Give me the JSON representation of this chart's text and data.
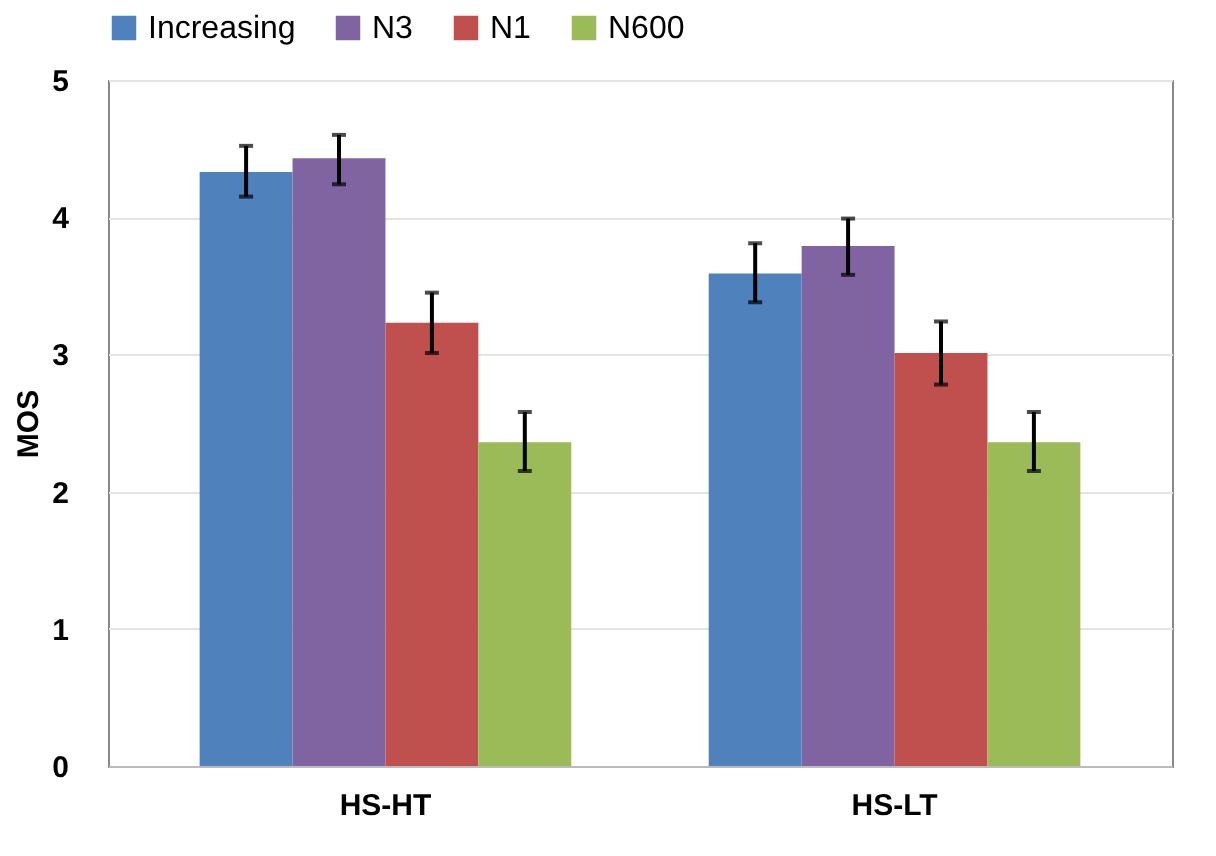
{
  "chart_data": {
    "type": "bar",
    "ylabel": "MOS",
    "categories": [
      "HS-HT",
      "HS-LT"
    ],
    "series": [
      {
        "name": "Increasing",
        "color": "#4f81bd",
        "values": [
          4.33,
          3.59
        ],
        "errors": [
          [
            4.15,
            4.52
          ],
          [
            3.38,
            3.81
          ]
        ]
      },
      {
        "name": "N3",
        "color": "#8064a2",
        "values": [
          4.43,
          3.79
        ],
        "errors": [
          [
            4.24,
            4.6
          ],
          [
            3.58,
            3.99
          ]
        ]
      },
      {
        "name": "N1",
        "color": "#c0504d",
        "values": [
          3.23,
          3.01
        ],
        "errors": [
          [
            3.01,
            3.45
          ],
          [
            2.78,
            3.24
          ]
        ]
      },
      {
        "name": "N600",
        "color": "#9bbb59",
        "values": [
          2.36,
          2.36
        ],
        "errors": [
          [
            2.15,
            2.58
          ],
          [
            2.15,
            2.58
          ]
        ]
      }
    ],
    "ylim": [
      0,
      5
    ],
    "yticks": [
      0,
      1,
      2,
      3,
      4,
      5
    ],
    "grid": "y",
    "legend": "top"
  }
}
